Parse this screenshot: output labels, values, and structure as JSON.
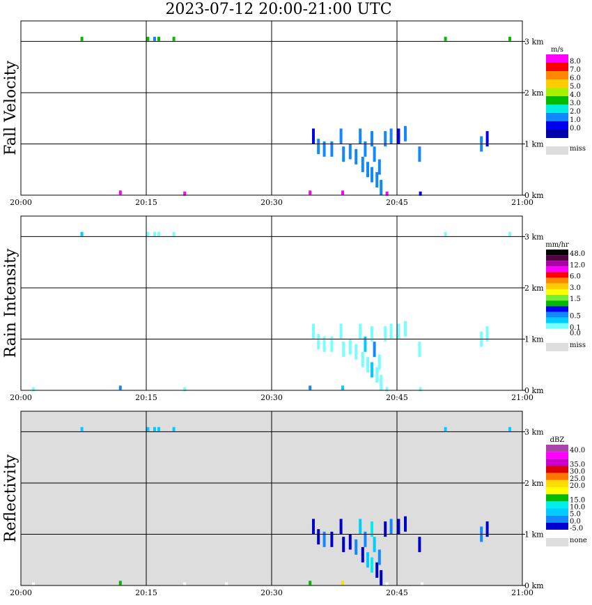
{
  "title": "2023-07-12   20:00-21:00 UTC",
  "chart_data": {
    "type": "heatmap",
    "x_ticks": [
      "20:00",
      "20:15",
      "20:30",
      "20:45",
      "21:00"
    ],
    "x_range_minutes": [
      0,
      60
    ],
    "y_ticks": [
      "0 km",
      "1 km",
      "2 km",
      "3 km"
    ],
    "y_range_km": [
      0,
      3.4
    ],
    "grid": true,
    "panels": [
      {
        "ylabel": "Fall Velocity",
        "unit": "m/s",
        "background": "#ffffff",
        "colorbar": [
          {
            "label": "8.0",
            "color": "#ff00ff"
          },
          {
            "label": "7.0",
            "color": "#ff0000"
          },
          {
            "label": "6.0",
            "color": "#ff8800"
          },
          {
            "label": "5.0",
            "color": "#ffcc00"
          },
          {
            "label": "4.0",
            "color": "#aaee00"
          },
          {
            "label": "3.0",
            "color": "#00bb00"
          },
          {
            "label": "2.0",
            "color": "#00eedd"
          },
          {
            "label": "1.0",
            "color": "#1188ff"
          },
          {
            "label": "0.0",
            "color": "#0000ee"
          },
          {
            "label": "",
            "color": "#0000aa"
          }
        ],
        "missing": {
          "label": "miss",
          "color": "#dddddd"
        },
        "cells": [
          [
            7.3,
            3.05,
            "#00bb00"
          ],
          [
            15.2,
            3.05,
            "#00bb00"
          ],
          [
            16.0,
            3.05,
            "#1188ff"
          ],
          [
            16.5,
            3.05,
            "#00bb00"
          ],
          [
            18.3,
            3.05,
            "#00bb00"
          ],
          [
            50.8,
            3.05,
            "#00bb00"
          ],
          [
            58.5,
            3.05,
            "#00bb00"
          ],
          [
            11.9,
            0.05,
            "#ff00ff"
          ],
          [
            19.6,
            0.03,
            "#ff00ff"
          ],
          [
            34.6,
            0.05,
            "#ff00ff"
          ],
          [
            38.5,
            0.05,
            "#ff00ff"
          ],
          [
            43.8,
            0.03,
            "#ff00ff"
          ],
          [
            47.8,
            0.03,
            "#0000ee"
          ],
          [
            35.0,
            1.15,
            "#0000ee"
          ],
          [
            35.6,
            0.95,
            "#1188ff"
          ],
          [
            36.3,
            0.9,
            "#1188ff"
          ],
          [
            37.2,
            0.9,
            "#1188ff"
          ],
          [
            38.3,
            1.15,
            "#1188ff"
          ],
          [
            38.6,
            0.8,
            "#1188ff"
          ],
          [
            39.4,
            0.85,
            "#1188ff"
          ],
          [
            40.1,
            0.75,
            "#1188ff"
          ],
          [
            40.6,
            1.15,
            "#1188ff"
          ],
          [
            40.9,
            0.6,
            "#1188ff"
          ],
          [
            41.2,
            0.9,
            "#1188ff"
          ],
          [
            41.5,
            0.5,
            "#1188ff"
          ],
          [
            42.0,
            1.1,
            "#1188ff"
          ],
          [
            42.0,
            0.4,
            "#1188ff"
          ],
          [
            42.3,
            0.8,
            "#1188ff"
          ],
          [
            42.6,
            0.3,
            "#1188ff"
          ],
          [
            42.9,
            0.55,
            "#1188ff"
          ],
          [
            43.1,
            0.15,
            "#1188ff"
          ],
          [
            43.6,
            1.1,
            "#1188ff"
          ],
          [
            44.3,
            1.15,
            "#1188ff"
          ],
          [
            45.2,
            1.15,
            "#0000ee"
          ],
          [
            46.0,
            1.2,
            "#1188ff"
          ],
          [
            47.7,
            0.8,
            "#1188ff"
          ],
          [
            55.1,
            1.0,
            "#1188ff"
          ],
          [
            55.8,
            1.1,
            "#0000ee"
          ]
        ]
      },
      {
        "ylabel": "Rain Intensity",
        "unit": "mm/hr",
        "background": "#ffffff",
        "colorbar": [
          {
            "label": "48.0",
            "color": "#000000"
          },
          {
            "label": "",
            "color": "#550044"
          },
          {
            "label": "12.0",
            "color": "#aa00aa"
          },
          {
            "label": "",
            "color": "#ff00ff"
          },
          {
            "label": "6.0",
            "color": "#ff0000"
          },
          {
            "label": "",
            "color": "#ff8800"
          },
          {
            "label": "3.0",
            "color": "#ffcc00"
          },
          {
            "label": "",
            "color": "#ffff00"
          },
          {
            "label": "1.5",
            "color": "#77ee33"
          },
          {
            "label": "",
            "color": "#00bb00"
          },
          {
            "label": "",
            "color": "#0000ee"
          },
          {
            "label": "0.5",
            "color": "#1188ff"
          },
          {
            "label": "",
            "color": "#00ccff"
          },
          {
            "label": "0.1",
            "color": "#77ffff"
          },
          {
            "label": "0.0",
            "color": "#ffffff"
          }
        ],
        "missing": {
          "label": "miss",
          "color": "#dddddd"
        },
        "cells": [
          [
            7.3,
            3.05,
            "#00ccff"
          ],
          [
            15.2,
            3.05,
            "#77ffff"
          ],
          [
            16.0,
            3.05,
            "#77ffff"
          ],
          [
            16.5,
            3.05,
            "#77ffff"
          ],
          [
            18.3,
            3.05,
            "#77ffff"
          ],
          [
            50.8,
            3.05,
            "#77ffff"
          ],
          [
            58.5,
            3.05,
            "#77ffff"
          ],
          [
            1.5,
            0.02,
            "#77ffff"
          ],
          [
            11.9,
            0.05,
            "#1188ff"
          ],
          [
            19.6,
            0.02,
            "#77ffff"
          ],
          [
            34.6,
            0.05,
            "#1188ff"
          ],
          [
            38.5,
            0.05,
            "#00ccff"
          ],
          [
            43.8,
            0.02,
            "#77ffff"
          ],
          [
            47.8,
            0.02,
            "#77ffff"
          ],
          [
            35.0,
            1.15,
            "#77ffff"
          ],
          [
            35.6,
            0.95,
            "#77ffff"
          ],
          [
            36.3,
            0.9,
            "#77ffff"
          ],
          [
            37.2,
            0.9,
            "#77ffff"
          ],
          [
            38.3,
            1.15,
            "#77ffff"
          ],
          [
            38.6,
            0.8,
            "#77ffff"
          ],
          [
            39.4,
            0.85,
            "#77ffff"
          ],
          [
            40.1,
            0.75,
            "#77ffff"
          ],
          [
            40.6,
            1.15,
            "#77ffff"
          ],
          [
            40.9,
            0.6,
            "#77ffff"
          ],
          [
            41.2,
            0.9,
            "#00ccff"
          ],
          [
            41.5,
            0.5,
            "#77ffff"
          ],
          [
            42.0,
            1.1,
            "#77ffff"
          ],
          [
            42.0,
            0.4,
            "#00ccff"
          ],
          [
            42.3,
            0.8,
            "#1188ff"
          ],
          [
            42.6,
            0.3,
            "#77ffff"
          ],
          [
            42.9,
            0.55,
            "#77ffff"
          ],
          [
            43.1,
            0.15,
            "#77ffff"
          ],
          [
            43.6,
            1.1,
            "#77ffff"
          ],
          [
            44.3,
            1.15,
            "#77ffff"
          ],
          [
            45.2,
            1.15,
            "#77ffff"
          ],
          [
            46.0,
            1.2,
            "#77ffff"
          ],
          [
            47.7,
            0.8,
            "#77ffff"
          ],
          [
            55.1,
            1.0,
            "#77ffff"
          ],
          [
            55.8,
            1.1,
            "#77ffff"
          ]
        ]
      },
      {
        "ylabel": "Reflectivity",
        "unit": "dBZ",
        "background": "#dddddd",
        "colorbar": [
          {
            "label": "40.0",
            "color": "#aa44aa"
          },
          {
            "label": "",
            "color": "#ff00ff"
          },
          {
            "label": "35.0",
            "color": "#cc00cc"
          },
          {
            "label": "30.0",
            "color": "#dd0000"
          },
          {
            "label": "25.0",
            "color": "#ff7700"
          },
          {
            "label": "20.0",
            "color": "#ffdd00"
          },
          {
            "label": "",
            "color": "#ffff00"
          },
          {
            "label": "15.0",
            "color": "#00bb00"
          },
          {
            "label": "10.0",
            "color": "#00eeee"
          },
          {
            "label": "5.0",
            "color": "#00ccff"
          },
          {
            "label": "0.0",
            "color": "#1188ff"
          },
          {
            "label": "-5.0",
            "color": "#0000cc"
          }
        ],
        "missing": {
          "label": "none",
          "color": "#dddddd"
        },
        "cells": [
          [
            7.3,
            3.05,
            "#00ccff"
          ],
          [
            15.2,
            3.05,
            "#00ccff"
          ],
          [
            16.0,
            3.05,
            "#00ccff"
          ],
          [
            16.5,
            3.05,
            "#00ccff"
          ],
          [
            18.3,
            3.05,
            "#00ccff"
          ],
          [
            50.8,
            3.05,
            "#00ccff"
          ],
          [
            58.5,
            3.05,
            "#00ccff"
          ],
          [
            1.5,
            0.02,
            "#ffffff"
          ],
          [
            11.9,
            0.05,
            "#00bb00"
          ],
          [
            19.6,
            0.02,
            "#ffffff"
          ],
          [
            24.6,
            0.02,
            "#ffffff"
          ],
          [
            34.6,
            0.05,
            "#00bb00"
          ],
          [
            38.5,
            0.05,
            "#ffdd00"
          ],
          [
            43.8,
            0.02,
            "#ffffff"
          ],
          [
            48.0,
            0.02,
            "#ffffff"
          ],
          [
            35.0,
            1.15,
            "#0000cc"
          ],
          [
            35.6,
            0.95,
            "#0000cc"
          ],
          [
            36.3,
            0.9,
            "#1188ff"
          ],
          [
            37.2,
            0.9,
            "#0000cc"
          ],
          [
            38.3,
            1.15,
            "#0000cc"
          ],
          [
            38.6,
            0.8,
            "#0000cc"
          ],
          [
            39.4,
            0.85,
            "#0000cc"
          ],
          [
            40.1,
            0.75,
            "#1188ff"
          ],
          [
            40.6,
            1.15,
            "#00ccff"
          ],
          [
            40.9,
            0.6,
            "#0000cc"
          ],
          [
            41.2,
            0.9,
            "#1188ff"
          ],
          [
            41.5,
            0.5,
            "#00ccff"
          ],
          [
            42.0,
            1.1,
            "#00eeee"
          ],
          [
            42.0,
            0.4,
            "#00eeee"
          ],
          [
            42.3,
            0.8,
            "#00ccff"
          ],
          [
            42.6,
            0.3,
            "#0000cc"
          ],
          [
            42.9,
            0.55,
            "#1188ff"
          ],
          [
            43.1,
            0.15,
            "#0000cc"
          ],
          [
            43.6,
            1.1,
            "#0000cc"
          ],
          [
            44.3,
            1.15,
            "#1188ff"
          ],
          [
            45.2,
            1.15,
            "#0000cc"
          ],
          [
            46.0,
            1.2,
            "#0000cc"
          ],
          [
            47.7,
            0.8,
            "#0000cc"
          ],
          [
            55.1,
            1.0,
            "#1188ff"
          ],
          [
            55.8,
            1.1,
            "#0000cc"
          ]
        ]
      }
    ]
  }
}
